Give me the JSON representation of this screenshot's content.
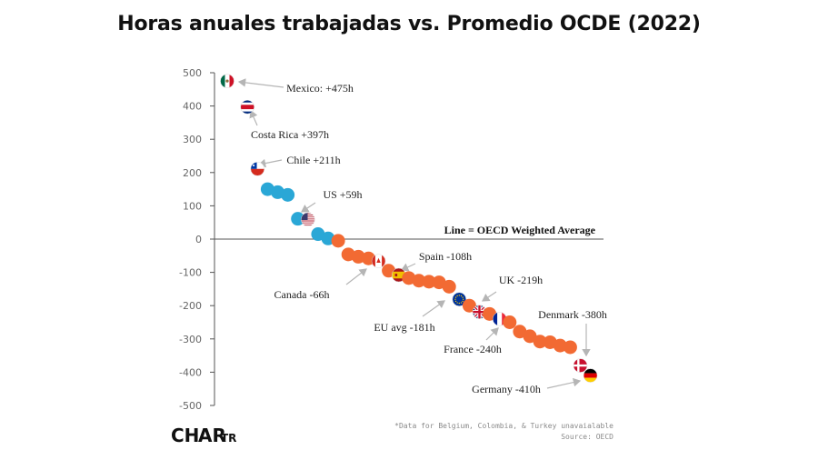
{
  "chart_data": {
    "type": "scatter",
    "title": "Horas anuales trabajadas vs. Promedio OCDE (2022)",
    "ylim": [
      -500,
      500
    ],
    "yticks": [
      "500",
      "400",
      "300",
      "200",
      "100",
      "0",
      "-100",
      "-200",
      "-300",
      "-400",
      "-500"
    ],
    "grid": false,
    "zero_line_label": "Line = OECD Weighted Average",
    "colors": {
      "above_average": "#2aa7d6",
      "below_average": "#f26a33",
      "axis": "#555555",
      "arrow": "#b5b5b5"
    },
    "points": [
      {
        "rank": 1,
        "value": 475,
        "flag": "mexico-flag"
      },
      {
        "rank": 3,
        "value": 397,
        "flag": "costa-rica-flag"
      },
      {
        "rank": 4,
        "value": 211,
        "flag": "chile-flag"
      },
      {
        "rank": 5,
        "value": 150
      },
      {
        "rank": 6,
        "value": 141
      },
      {
        "rank": 7,
        "value": 133
      },
      {
        "rank": 8,
        "value": 61
      },
      {
        "rank": 9,
        "value": 59,
        "flag": "us-flag"
      },
      {
        "rank": 10,
        "value": 15
      },
      {
        "rank": 11,
        "value": 2
      },
      {
        "rank": 12,
        "value": -5
      },
      {
        "rank": 13,
        "value": -46
      },
      {
        "rank": 14,
        "value": -53
      },
      {
        "rank": 15,
        "value": -58
      },
      {
        "rank": 16,
        "value": -66,
        "flag": "canada-flag"
      },
      {
        "rank": 17,
        "value": -95
      },
      {
        "rank": 18,
        "value": -108,
        "flag": "spain-flag"
      },
      {
        "rank": 19,
        "value": -117
      },
      {
        "rank": 20,
        "value": -125
      },
      {
        "rank": 21,
        "value": -128
      },
      {
        "rank": 22,
        "value": -130
      },
      {
        "rank": 23,
        "value": -143
      },
      {
        "rank": 24,
        "value": -181,
        "flag": "eu-flag"
      },
      {
        "rank": 25,
        "value": -200
      },
      {
        "rank": 26,
        "value": -219,
        "flag": "uk-flag"
      },
      {
        "rank": 27,
        "value": -225
      },
      {
        "rank": 28,
        "value": -240,
        "flag": "france-flag"
      },
      {
        "rank": 29,
        "value": -250
      },
      {
        "rank": 30,
        "value": -278
      },
      {
        "rank": 31,
        "value": -292
      },
      {
        "rank": 32,
        "value": -308
      },
      {
        "rank": 33,
        "value": -310
      },
      {
        "rank": 34,
        "value": -320
      },
      {
        "rank": 35,
        "value": -325
      },
      {
        "rank": 36,
        "value": -380,
        "flag": "denmark-flag"
      },
      {
        "rank": 37,
        "value": -410,
        "flag": "germany-flag"
      }
    ],
    "annotations": [
      {
        "text": "Mexico: +475h",
        "rank": 1
      },
      {
        "text": "Costa Rica +397h",
        "rank": 3
      },
      {
        "text": "Chile +211h",
        "rank": 4
      },
      {
        "text": "US +59h",
        "rank": 9
      },
      {
        "text": "Canada -66h",
        "rank": 16
      },
      {
        "text": "Spain -108h",
        "rank": 18
      },
      {
        "text": "EU avg -181h",
        "rank": 24
      },
      {
        "text": "UK -219h",
        "rank": 26
      },
      {
        "text": "France -240h",
        "rank": 28
      },
      {
        "text": "Denmark -380h",
        "rank": 36
      },
      {
        "text": "Germany -410h",
        "rank": 37
      }
    ]
  },
  "footer": {
    "note": "*Data for Belgium, Colombia, & Turkey unavaialable",
    "source": "Source: OECD",
    "logo": "CHARTR"
  }
}
